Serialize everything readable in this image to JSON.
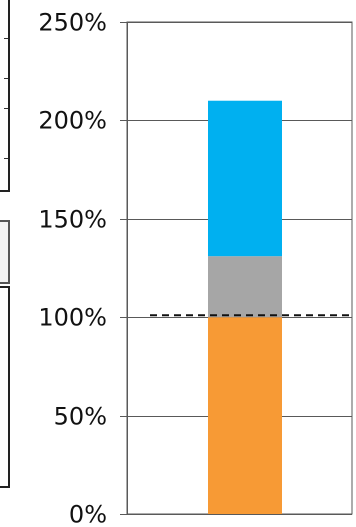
{
  "chart_data": {
    "type": "bar",
    "stacked": true,
    "categories": [
      ""
    ],
    "series": [
      {
        "values": [
          100
        ],
        "color": "#f79a35"
      },
      {
        "values": [
          31
        ],
        "color": "#a6a6a6"
      },
      {
        "values": [
          79
        ],
        "color": "#00b0f0"
      }
    ],
    "reference_line": {
      "value": 101,
      "style": "dashed",
      "color": "#111111"
    },
    "ylim": [
      0,
      250
    ],
    "yticks": [
      0,
      50,
      100,
      150,
      200,
      250
    ],
    "ytick_labels": [
      "0%",
      "50%",
      "100%",
      "150%",
      "200%",
      "250%"
    ],
    "grid": true,
    "title": "",
    "xlabel": "",
    "ylabel": ""
  }
}
